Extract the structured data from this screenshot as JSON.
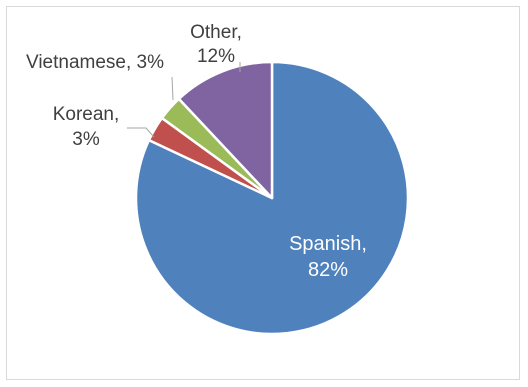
{
  "chart_data": {
    "type": "pie",
    "title": "",
    "categories": [
      "Spanish",
      "Korean",
      "Vietnamese",
      "Other"
    ],
    "values": [
      82,
      3,
      3,
      12
    ],
    "colors": [
      "#4f81bd",
      "#c0504d",
      "#9bbb59",
      "#8064a2"
    ],
    "labels": [
      {
        "category": "Spanish",
        "lines": [
          "Spanish,",
          "82%"
        ]
      },
      {
        "category": "Korean",
        "lines": [
          "Korean,",
          "3%"
        ]
      },
      {
        "category": "Vietnamese",
        "lines": [
          "Vietnamese, 3%"
        ]
      },
      {
        "category": "Other",
        "lines": [
          "Other,",
          "12%"
        ]
      }
    ],
    "legend": "none",
    "start_angle": "12 o'clock",
    "direction": "clockwise"
  }
}
